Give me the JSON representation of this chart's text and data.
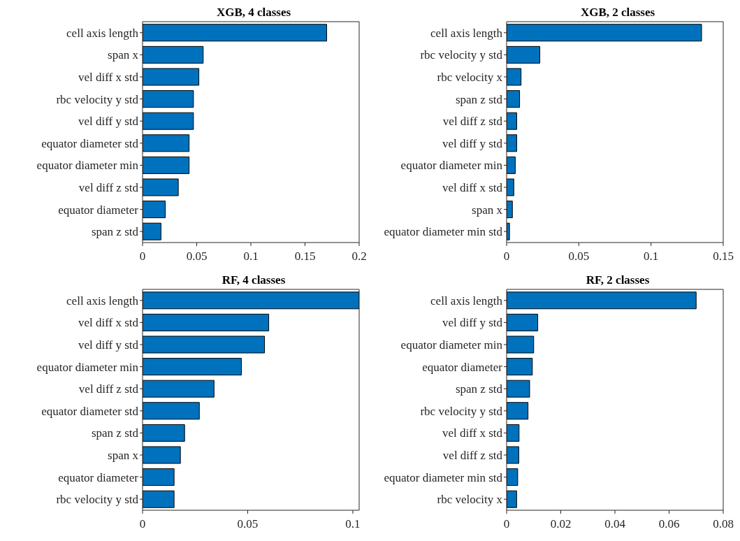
{
  "chart_data": [
    {
      "type": "bar",
      "orientation": "horizontal",
      "title": "XGB, 4 classes",
      "categories": [
        "cell axis length",
        "span x",
        "vel diff x std",
        "rbc velocity y std",
        "vel diff y std",
        "equator diameter std",
        "equator diameter min",
        "vel diff z std",
        "equator diameter",
        "span z std"
      ],
      "values": [
        0.17,
        0.056,
        0.052,
        0.047,
        0.047,
        0.043,
        0.043,
        0.033,
        0.021,
        0.017
      ],
      "color": "#0072bd",
      "xlim": [
        0,
        0.2
      ],
      "xticks": [
        0,
        0.05,
        0.1,
        0.15,
        0.2
      ],
      "grid": false
    },
    {
      "type": "bar",
      "orientation": "horizontal",
      "title": "XGB, 2 classes",
      "categories": [
        "cell axis length",
        "rbc velocity y std",
        "rbc velocity x",
        "span z std",
        "vel diff z std",
        "vel diff y std",
        "equator diameter min",
        "vel diff x std",
        "span x",
        "equator diameter min std"
      ],
      "values": [
        0.135,
        0.023,
        0.01,
        0.009,
        0.007,
        0.007,
        0.006,
        0.005,
        0.004,
        0.002
      ],
      "color": "#0072bd",
      "xlim": [
        0,
        0.15
      ],
      "xticks": [
        0,
        0.05,
        0.1,
        0.15
      ],
      "grid": false
    },
    {
      "type": "bar",
      "orientation": "horizontal",
      "title": "RF, 4 classes",
      "categories": [
        "cell axis length",
        "vel diff x std",
        "vel diff y std",
        "equator diameter min",
        "vel diff z std",
        "equator diameter std",
        "span z std",
        "span x",
        "equator diameter",
        "rbc velocity y std"
      ],
      "values": [
        0.103,
        0.06,
        0.058,
        0.047,
        0.034,
        0.027,
        0.02,
        0.018,
        0.015,
        0.015
      ],
      "color": "#0072bd",
      "xlim": [
        0,
        0.103
      ],
      "xticks": [
        0,
        0.05,
        0.1
      ],
      "grid": false
    },
    {
      "type": "bar",
      "orientation": "horizontal",
      "title": "RF, 2 classes",
      "categories": [
        "cell axis length",
        "vel diff y std",
        "equator diameter min",
        "equator diameter",
        "span z std",
        "rbc velocity y std",
        "vel diff x std",
        "vel diff z std",
        "equator diameter min std",
        "rbc velocity x"
      ],
      "values": [
        0.07,
        0.0115,
        0.01,
        0.0095,
        0.0085,
        0.0079,
        0.0046,
        0.0045,
        0.0041,
        0.0037
      ],
      "color": "#0072bd",
      "xlim": [
        0,
        0.08
      ],
      "xticks": [
        0,
        0.02,
        0.04,
        0.06,
        0.08
      ],
      "grid": false
    }
  ]
}
